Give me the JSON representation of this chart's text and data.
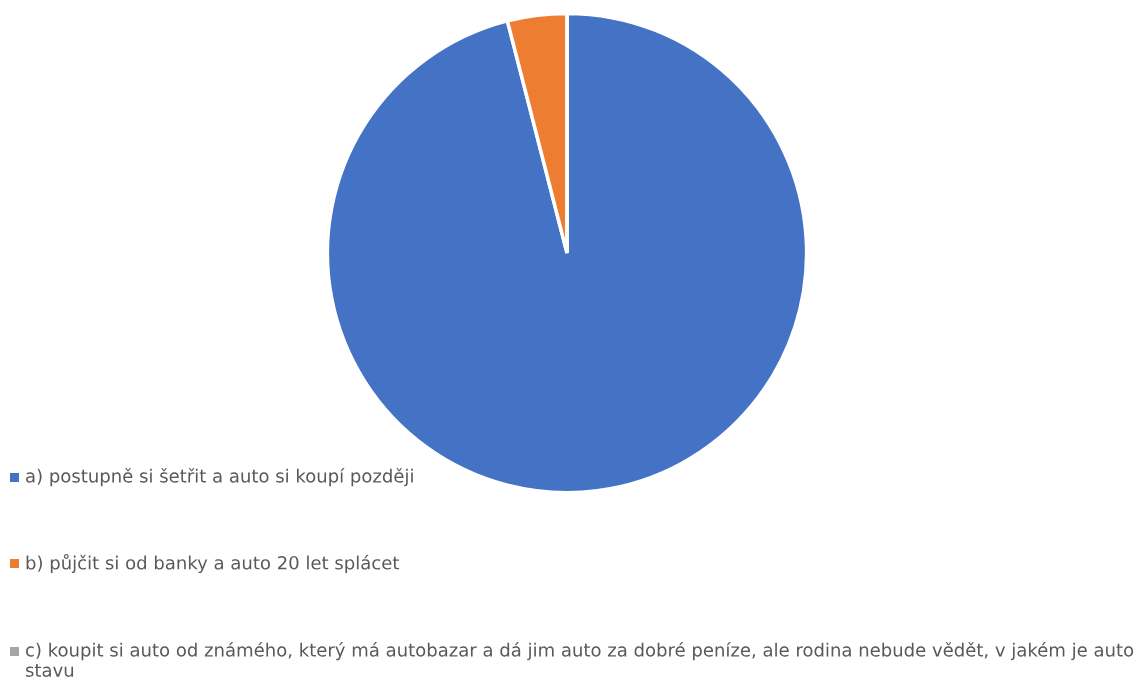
{
  "chart_data": {
    "type": "pie",
    "categories": [
      "a) postupně si šetřit a auto si koupí později",
      "b) půjčit si od banky a auto 20 let splácet",
      "c) koupit si auto od známého, který má autobazar a dá jim auto za dobré peníze, ale rodina nebude vědět, v jakém je auto stavu"
    ],
    "values": [
      96,
      4,
      0
    ],
    "colors": [
      "#4472c4",
      "#ed7d31",
      "#a5a5a5"
    ],
    "legend": "bottom left"
  }
}
